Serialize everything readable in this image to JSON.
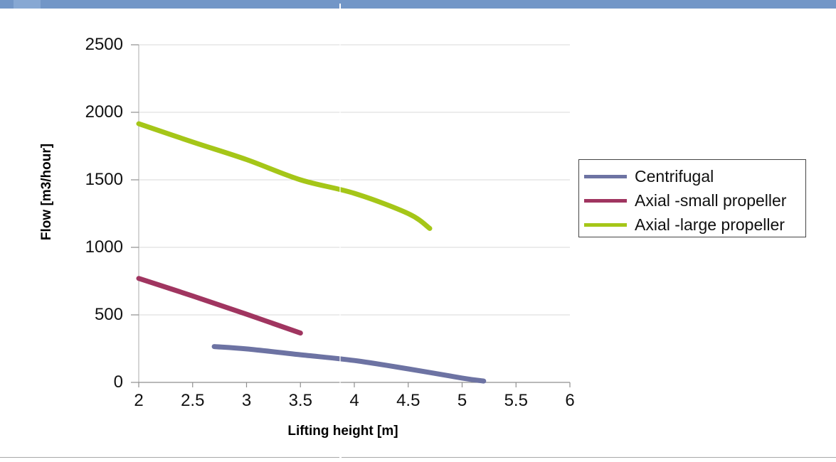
{
  "chrome": {
    "top_bar_color": "#7296c7",
    "top_bar_accent_color": "#87a8d3",
    "bottom_line_color": "#a8a8a8"
  },
  "chart_data": {
    "type": "line",
    "title": "",
    "xlabel": "Lifting height [m]",
    "ylabel": "Flow [m3/hour]",
    "xlim": [
      2,
      6
    ],
    "ylim": [
      0,
      2500
    ],
    "x_ticks": [
      2,
      2.5,
      3,
      3.5,
      4,
      4.5,
      5,
      5.5,
      6
    ],
    "x_tick_labels": [
      "2",
      "2.5",
      "3",
      "3.5",
      "4",
      "4.5",
      "5",
      "5.5",
      "6"
    ],
    "y_ticks": [
      0,
      500,
      1000,
      1500,
      2000,
      2500
    ],
    "y_tick_labels": [
      "0",
      "500",
      "1000",
      "1500",
      "2000",
      "2500"
    ],
    "grid": "horizontal",
    "legend_position": "right",
    "axis_color": "#8f8f8f",
    "y_axis_line_color": "#b9b9b9",
    "gridline_color": "#d9d9d9",
    "series": [
      {
        "name": "Centrifugal",
        "color": "#6d73a3",
        "points": [
          [
            2.7,
            265
          ],
          [
            3,
            248
          ],
          [
            3.5,
            205
          ],
          [
            4,
            162
          ],
          [
            4.5,
            100
          ],
          [
            5,
            32
          ],
          [
            5.2,
            10
          ]
        ]
      },
      {
        "name": "Axial -small propeller",
        "color": "#a03560",
        "points": [
          [
            2,
            770
          ],
          [
            2.5,
            640
          ],
          [
            3,
            505
          ],
          [
            3.5,
            365
          ]
        ]
      },
      {
        "name": "Axial -large propeller",
        "color": "#a5c618",
        "points": [
          [
            2,
            1915
          ],
          [
            2.5,
            1780
          ],
          [
            3,
            1650
          ],
          [
            3.5,
            1500
          ],
          [
            4,
            1400
          ],
          [
            4.5,
            1250
          ],
          [
            4.7,
            1140
          ]
        ]
      }
    ]
  }
}
